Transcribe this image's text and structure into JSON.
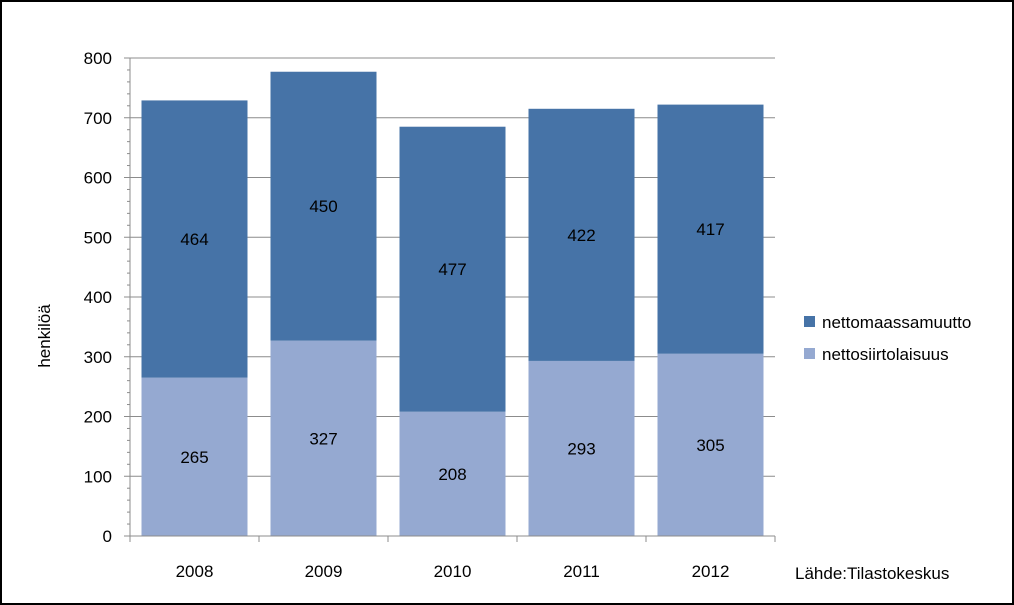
{
  "chart_data": {
    "type": "bar",
    "stacked": true,
    "categories": [
      "2008",
      "2009",
      "2010",
      "2011",
      "2012"
    ],
    "series": [
      {
        "name": "nettosiirtolaisuus",
        "values": [
          265,
          327,
          208,
          293,
          305
        ],
        "color": "#95a9d1"
      },
      {
        "name": "nettomaassamuutto",
        "values": [
          464,
          450,
          477,
          422,
          417
        ],
        "color": "#4673a7"
      }
    ],
    "ylabel": "henkilöä",
    "ylim": [
      0,
      800
    ],
    "yticks": [
      0,
      100,
      200,
      300,
      400,
      500,
      600,
      700,
      800
    ],
    "grid": true,
    "legend": "right",
    "source": "Lähde:Tilastokeskus"
  }
}
